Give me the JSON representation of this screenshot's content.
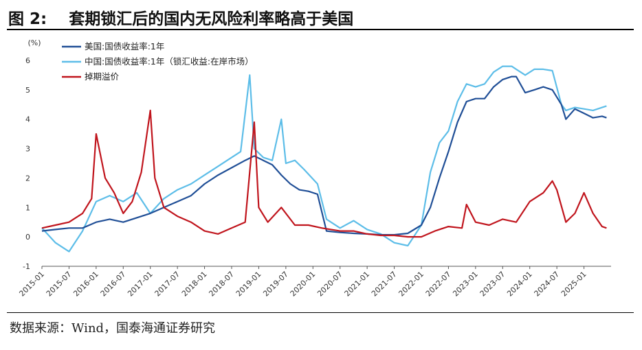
{
  "header": {
    "title": "图 2:    套期锁汇后的国内无风险利率略高于美国"
  },
  "footer": {
    "source": "数据来源：Wind，国泰海通证券研究"
  },
  "chart_data": {
    "type": "line",
    "title": "套期锁汇后的国内无风险利率略高于美国",
    "ylabel": "(%)",
    "xlabel": "",
    "ylim": [
      -1,
      6
    ],
    "yticks": [
      -1,
      0,
      1,
      2,
      3,
      4,
      5,
      6
    ],
    "xticks": [
      "2015-01",
      "2015-07",
      "2016-01",
      "2016-07",
      "2017-01",
      "2017-07",
      "2018-01",
      "2018-07",
      "2019-01",
      "2019-07",
      "2020-01",
      "2020-07",
      "2021-01",
      "2021-07",
      "2022-01",
      "2022-07",
      "2023-01",
      "2023-07",
      "2024-01",
      "2024-07",
      "2025-01"
    ],
    "legend_position": "top-left",
    "grid": false,
    "series": [
      {
        "name": "美国:国债收益率:1年",
        "color": "#1f4e96",
        "points": [
          [
            "2015-01",
            0.2
          ],
          [
            "2015-04",
            0.25
          ],
          [
            "2015-07",
            0.3
          ],
          [
            "2015-10",
            0.3
          ],
          [
            "2016-01",
            0.5
          ],
          [
            "2016-04",
            0.6
          ],
          [
            "2016-07",
            0.5
          ],
          [
            "2016-10",
            0.65
          ],
          [
            "2017-01",
            0.8
          ],
          [
            "2017-04",
            1.0
          ],
          [
            "2017-07",
            1.2
          ],
          [
            "2017-10",
            1.4
          ],
          [
            "2018-01",
            1.8
          ],
          [
            "2018-04",
            2.1
          ],
          [
            "2018-07",
            2.35
          ],
          [
            "2018-10",
            2.6
          ],
          [
            "2018-12",
            2.75
          ],
          [
            "2019-02",
            2.6
          ],
          [
            "2019-04",
            2.45
          ],
          [
            "2019-06",
            2.1
          ],
          [
            "2019-08",
            1.8
          ],
          [
            "2019-10",
            1.6
          ],
          [
            "2019-12",
            1.55
          ],
          [
            "2020-02",
            1.45
          ],
          [
            "2020-04",
            0.2
          ],
          [
            "2020-07",
            0.15
          ],
          [
            "2020-10",
            0.12
          ],
          [
            "2021-01",
            0.1
          ],
          [
            "2021-04",
            0.07
          ],
          [
            "2021-07",
            0.07
          ],
          [
            "2021-10",
            0.12
          ],
          [
            "2022-01",
            0.4
          ],
          [
            "2022-03",
            1.0
          ],
          [
            "2022-05",
            2.0
          ],
          [
            "2022-07",
            2.9
          ],
          [
            "2022-09",
            3.9
          ],
          [
            "2022-11",
            4.6
          ],
          [
            "2023-01",
            4.7
          ],
          [
            "2023-03",
            4.7
          ],
          [
            "2023-05",
            5.1
          ],
          [
            "2023-07",
            5.35
          ],
          [
            "2023-09",
            5.45
          ],
          [
            "2023-10",
            5.45
          ],
          [
            "2023-12",
            4.9
          ],
          [
            "2024-02",
            5.0
          ],
          [
            "2024-04",
            5.1
          ],
          [
            "2024-06",
            5.0
          ],
          [
            "2024-08",
            4.5
          ],
          [
            "2024-09",
            4.0
          ],
          [
            "2024-11",
            4.35
          ],
          [
            "2025-01",
            4.2
          ],
          [
            "2025-03",
            4.05
          ],
          [
            "2025-05",
            4.1
          ],
          [
            "2025-06",
            4.05
          ]
        ]
      },
      {
        "name": "中国:国债收益率:1年（锁汇收益:在岸市场）",
        "color": "#5cbde8",
        "points": [
          [
            "2015-01",
            0.3
          ],
          [
            "2015-04",
            -0.2
          ],
          [
            "2015-07",
            -0.5
          ],
          [
            "2015-10",
            0.2
          ],
          [
            "2016-01",
            1.2
          ],
          [
            "2016-04",
            1.4
          ],
          [
            "2016-07",
            1.2
          ],
          [
            "2016-10",
            1.5
          ],
          [
            "2017-01",
            0.8
          ],
          [
            "2017-04",
            1.3
          ],
          [
            "2017-07",
            1.6
          ],
          [
            "2017-10",
            1.8
          ],
          [
            "2018-01",
            2.1
          ],
          [
            "2018-04",
            2.4
          ],
          [
            "2018-07",
            2.7
          ],
          [
            "2018-09",
            2.9
          ],
          [
            "2018-11",
            5.5
          ],
          [
            "2018-12",
            3.0
          ],
          [
            "2019-02",
            2.7
          ],
          [
            "2019-04",
            2.6
          ],
          [
            "2019-06",
            4.0
          ],
          [
            "2019-07",
            2.5
          ],
          [
            "2019-09",
            2.6
          ],
          [
            "2019-11",
            2.3
          ],
          [
            "2020-02",
            1.8
          ],
          [
            "2020-04",
            0.6
          ],
          [
            "2020-07",
            0.3
          ],
          [
            "2020-10",
            0.55
          ],
          [
            "2021-01",
            0.25
          ],
          [
            "2021-04",
            0.1
          ],
          [
            "2021-07",
            -0.2
          ],
          [
            "2021-10",
            -0.3
          ],
          [
            "2022-01",
            0.4
          ],
          [
            "2022-03",
            2.2
          ],
          [
            "2022-05",
            3.2
          ],
          [
            "2022-07",
            3.6
          ],
          [
            "2022-09",
            4.6
          ],
          [
            "2022-11",
            5.2
          ],
          [
            "2023-01",
            5.1
          ],
          [
            "2023-03",
            5.2
          ],
          [
            "2023-05",
            5.6
          ],
          [
            "2023-07",
            5.8
          ],
          [
            "2023-09",
            5.8
          ],
          [
            "2023-10",
            5.7
          ],
          [
            "2023-12",
            5.5
          ],
          [
            "2024-02",
            5.7
          ],
          [
            "2024-04",
            5.7
          ],
          [
            "2024-06",
            5.65
          ],
          [
            "2024-08",
            4.5
          ],
          [
            "2024-09",
            4.3
          ],
          [
            "2024-11",
            4.4
          ],
          [
            "2025-01",
            4.35
          ],
          [
            "2025-03",
            4.3
          ],
          [
            "2025-05",
            4.4
          ],
          [
            "2025-06",
            4.45
          ]
        ]
      },
      {
        "name": "掉期溢价",
        "color": "#c0141c",
        "points": [
          [
            "2015-01",
            0.3
          ],
          [
            "2015-04",
            0.4
          ],
          [
            "2015-07",
            0.5
          ],
          [
            "2015-10",
            0.8
          ],
          [
            "2015-12",
            1.3
          ],
          [
            "2016-01",
            3.5
          ],
          [
            "2016-03",
            2.0
          ],
          [
            "2016-05",
            1.5
          ],
          [
            "2016-07",
            0.8
          ],
          [
            "2016-09",
            1.2
          ],
          [
            "2016-11",
            2.2
          ],
          [
            "2017-01",
            4.3
          ],
          [
            "2017-02",
            2.0
          ],
          [
            "2017-04",
            1.0
          ],
          [
            "2017-07",
            0.7
          ],
          [
            "2017-10",
            0.5
          ],
          [
            "2018-01",
            0.2
          ],
          [
            "2018-04",
            0.1
          ],
          [
            "2018-07",
            0.3
          ],
          [
            "2018-10",
            0.5
          ],
          [
            "2018-12",
            3.9
          ],
          [
            "2019-01",
            1.0
          ],
          [
            "2019-03",
            0.5
          ],
          [
            "2019-06",
            1.0
          ],
          [
            "2019-09",
            0.4
          ],
          [
            "2019-12",
            0.4
          ],
          [
            "2020-03",
            0.3
          ],
          [
            "2020-07",
            0.2
          ],
          [
            "2020-10",
            0.2
          ],
          [
            "2021-01",
            0.1
          ],
          [
            "2021-04",
            0.05
          ],
          [
            "2021-07",
            0.05
          ],
          [
            "2021-10",
            0.0
          ],
          [
            "2022-01",
            0.0
          ],
          [
            "2022-04",
            0.2
          ],
          [
            "2022-07",
            0.35
          ],
          [
            "2022-10",
            0.3
          ],
          [
            "2022-11",
            1.1
          ],
          [
            "2023-01",
            0.5
          ],
          [
            "2023-04",
            0.4
          ],
          [
            "2023-07",
            0.6
          ],
          [
            "2023-10",
            0.5
          ],
          [
            "2024-01",
            1.2
          ],
          [
            "2024-04",
            1.5
          ],
          [
            "2024-06",
            1.9
          ],
          [
            "2024-07",
            1.6
          ],
          [
            "2024-09",
            0.5
          ],
          [
            "2024-11",
            0.8
          ],
          [
            "2025-01",
            1.5
          ],
          [
            "2025-03",
            0.8
          ],
          [
            "2025-05",
            0.35
          ],
          [
            "2025-06",
            0.3
          ]
        ]
      }
    ]
  }
}
